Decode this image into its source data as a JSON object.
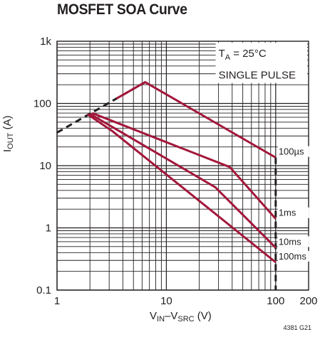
{
  "title": "MOSFET SOA Curve",
  "figure_id": "4381 G21",
  "chart_data": {
    "type": "line",
    "title": "MOSFET SOA Curve",
    "xscale": "log",
    "yscale": "log",
    "xlim": [
      1,
      200
    ],
    "ylim": [
      0.1,
      1000
    ],
    "x_ticks": [
      {
        "value": 1,
        "label": "1"
      },
      {
        "value": 10,
        "label": "10"
      },
      {
        "value": 100,
        "label": "100"
      },
      {
        "value": 200,
        "label": "200"
      }
    ],
    "y_ticks": [
      {
        "value": 0.1,
        "label": "0.1"
      },
      {
        "value": 1,
        "label": "1"
      },
      {
        "value": 10,
        "label": "10"
      },
      {
        "value": 100,
        "label": "100"
      },
      {
        "value": 1000,
        "label": "1k"
      }
    ],
    "xlabel": {
      "main": "V",
      "sub1": "IN",
      "mid": "–V",
      "sub2": "SRC",
      "unit": " (V)"
    },
    "ylabel": {
      "main": "I",
      "sub": "OUT",
      "unit": " (A)"
    },
    "annotation": {
      "line1_main": "T",
      "line1_sub": "A",
      "line1_rest": " = 25°C",
      "line2": "SINGLE PULSE"
    },
    "grid": true,
    "colors": {
      "curve": "#a3173a",
      "dashed": "#231f20",
      "grid": "#231f20"
    },
    "series": [
      {
        "name": "100µs",
        "points": [
          [
            3.5,
            120
          ],
          [
            6.4,
            220
          ],
          [
            100,
            13.5
          ]
        ]
      },
      {
        "name": "1ms",
        "points": [
          [
            2.1,
            70
          ],
          [
            38,
            9.5
          ],
          [
            100,
            1.4
          ]
        ]
      },
      {
        "name": "10ms",
        "points": [
          [
            2.0,
            68
          ],
          [
            28,
            4.5
          ],
          [
            100,
            0.48
          ]
        ]
      },
      {
        "name": "100ms",
        "points": [
          [
            1.9,
            67
          ],
          [
            3.2,
            36
          ],
          [
            100,
            0.28
          ]
        ]
      }
    ],
    "limit_line_dashed": {
      "points": [
        [
          1,
          34
        ],
        [
          6.4,
          220
        ]
      ]
    },
    "vertical_limit_dashed": {
      "x": 100,
      "y_from": 0.1,
      "y_to": 13.5
    }
  }
}
